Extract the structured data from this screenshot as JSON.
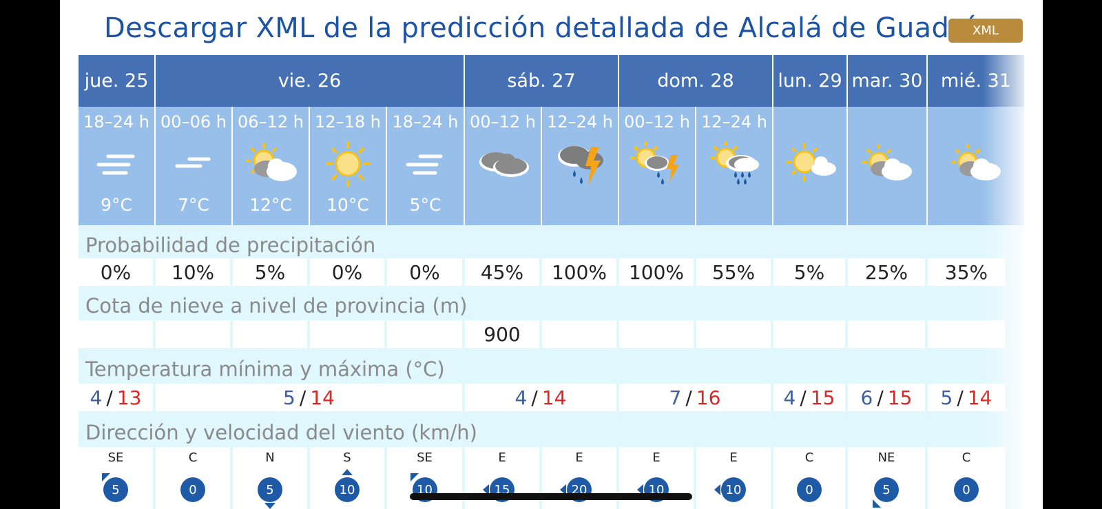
{
  "header": {
    "title": "Descargar XML de la predicción detallada de Alcalá de Guadaíra",
    "xml_label": "XML"
  },
  "days": [
    "jue. 25",
    "vie. 26",
    "sáb. 27",
    "dom. 28",
    "lun. 29",
    "mar. 30",
    "mié. 31"
  ],
  "periods": [
    {
      "time": "18–24 h",
      "icon": "fog-icon",
      "temp": "9°C"
    },
    {
      "time": "00–06 h",
      "icon": "fog-icon",
      "temp": "7°C"
    },
    {
      "time": "06–12 h",
      "icon": "sun-cloudy-icon",
      "temp": "12°C"
    },
    {
      "time": "12–18 h",
      "icon": "sun-icon",
      "temp": "10°C"
    },
    {
      "time": "18–24 h",
      "icon": "fog-icon",
      "temp": "5°C"
    },
    {
      "time": "00–12 h",
      "icon": "cloudy-icon",
      "temp": ""
    },
    {
      "time": "12–24 h",
      "icon": "storm-rain-icon",
      "temp": ""
    },
    {
      "time": "00–12 h",
      "icon": "sun-storm-rain-icon",
      "temp": ""
    },
    {
      "time": "12–24 h",
      "icon": "sun-rain-icon",
      "temp": ""
    },
    {
      "time": "",
      "icon": "sun-cloud-icon",
      "temp": ""
    },
    {
      "time": "",
      "icon": "sun-cloudy-icon",
      "temp": ""
    },
    {
      "time": "",
      "icon": "sun-cloudy-icon",
      "temp": ""
    }
  ],
  "precipitation": {
    "label": "Probabilidad de precipitación",
    "values": [
      "0%",
      "10%",
      "5%",
      "0%",
      "0%",
      "45%",
      "100%",
      "100%",
      "55%",
      "5%",
      "25%",
      "35%"
    ]
  },
  "snow": {
    "label": "Cota de nieve a nivel de provincia (m)",
    "values": [
      "",
      "",
      "",
      "",
      "",
      "900",
      "",
      "",
      "",
      "",
      "",
      ""
    ]
  },
  "temperature": {
    "label": "Temperatura mínima y máxima (°C)",
    "days": [
      {
        "min": "4",
        "max": "13"
      },
      {
        "min": "5",
        "max": "14"
      },
      {
        "min": "4",
        "max": "14"
      },
      {
        "min": "7",
        "max": "16"
      },
      {
        "min": "4",
        "max": "15"
      },
      {
        "min": "6",
        "max": "15"
      },
      {
        "min": "5",
        "max": "14"
      }
    ]
  },
  "wind": {
    "label": "Dirección y velocidad del viento (km/h)",
    "values": [
      {
        "dir": "SE",
        "speed": "5"
      },
      {
        "dir": "C",
        "speed": "0"
      },
      {
        "dir": "N",
        "speed": "5"
      },
      {
        "dir": "S",
        "speed": "10"
      },
      {
        "dir": "SE",
        "speed": "10"
      },
      {
        "dir": "E",
        "speed": "15"
      },
      {
        "dir": "E",
        "speed": "20"
      },
      {
        "dir": "E",
        "speed": "10"
      },
      {
        "dir": "E",
        "speed": "10"
      },
      {
        "dir": "C",
        "speed": "0"
      },
      {
        "dir": "NE",
        "speed": "5"
      },
      {
        "dir": "C",
        "speed": "0"
      }
    ]
  },
  "colors": {
    "header_blue": "#4571b4",
    "period_blue": "#98bfe9",
    "band_cyan": "#dff7fd",
    "min_blue": "#3d5f9c",
    "max_red": "#e02424",
    "xml_gold": "#b98b3d"
  }
}
